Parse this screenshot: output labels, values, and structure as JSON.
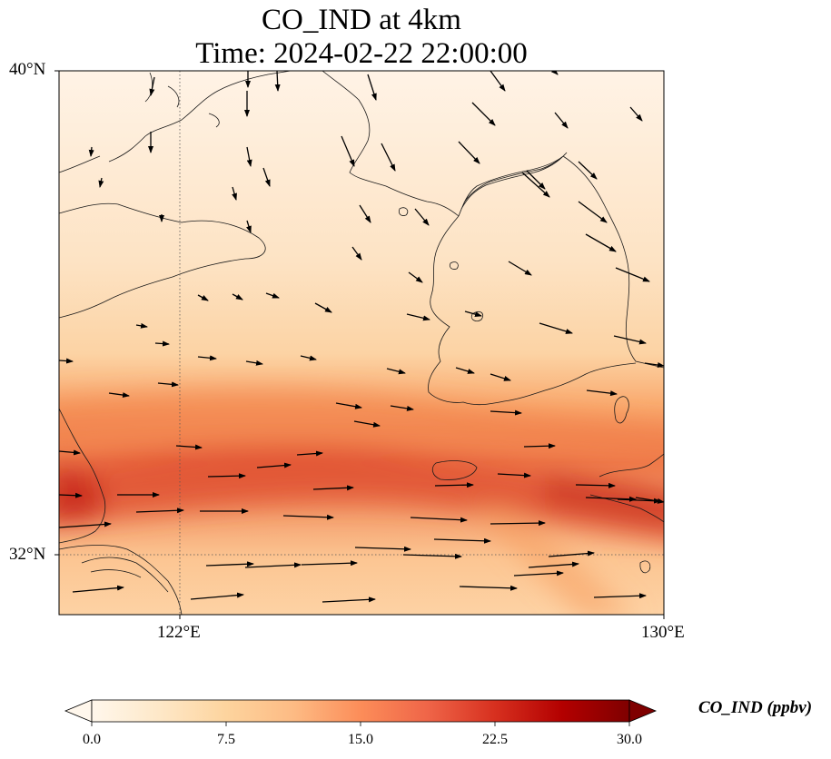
{
  "title_line1": "CO_IND at 4km",
  "title_line2": "Time: 2024-02-22 22:00:00",
  "map": {
    "lat_labels": [
      "40°N",
      "32°N"
    ],
    "lon_labels": [
      "122°E",
      "130°E"
    ],
    "lon_range": [
      120,
      130
    ],
    "lat_range": [
      31,
      40
    ],
    "gridlines": true,
    "field_colors": {
      "low": "#fff5eb",
      "mid": "#fdd0a2",
      "high": "#f16913",
      "peak": "#d7301f"
    }
  },
  "colorbar": {
    "label": "CO_IND (ppbv)",
    "ticks": [
      "0.0",
      "7.5",
      "15.0",
      "22.5",
      "30.0"
    ],
    "range": [
      0,
      30
    ],
    "colormap": "OrRd",
    "extend": "both"
  }
}
